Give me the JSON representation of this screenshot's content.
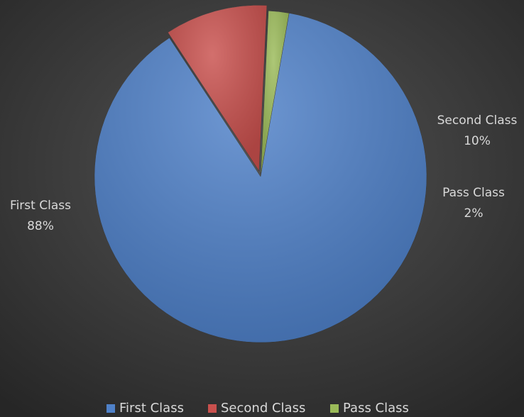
{
  "chart_data": {
    "type": "pie",
    "categories": [
      "First Class",
      "Second Class",
      "Pass Class"
    ],
    "values": [
      88,
      10,
      2
    ],
    "value_labels": [
      "88%",
      "10%",
      "2%"
    ],
    "colors": [
      "#4f81c9",
      "#c9504d",
      "#9bbb59"
    ],
    "legend": "bottom"
  }
}
